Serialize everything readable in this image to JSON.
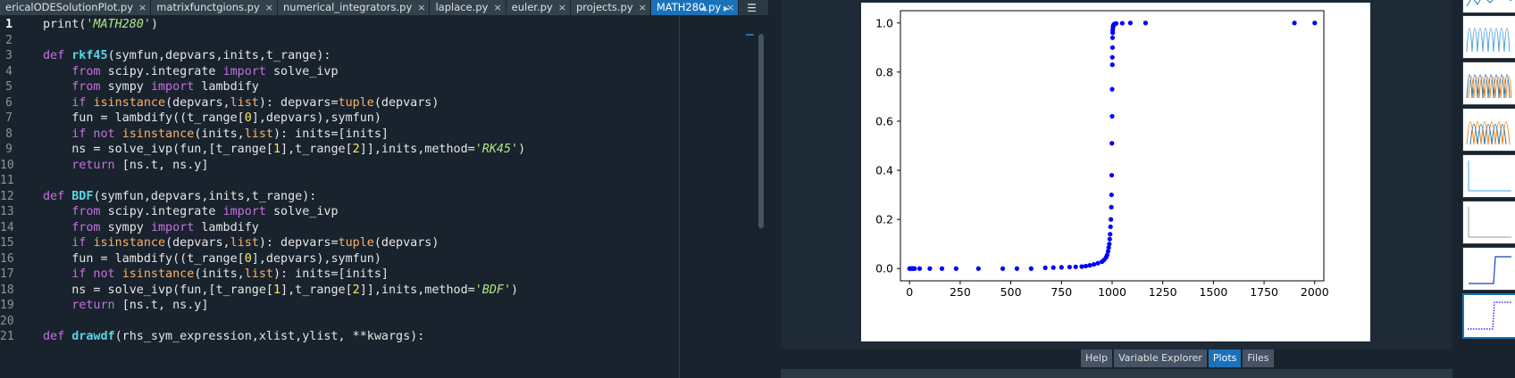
{
  "tabs": [
    {
      "label": "ericalODESolutionPlot.py",
      "active": false
    },
    {
      "label": "matrixfunctgions.py",
      "active": false
    },
    {
      "label": "numerical_integrators.py",
      "active": false
    },
    {
      "label": "laplace.py",
      "active": false
    },
    {
      "label": "euler.py",
      "active": false
    },
    {
      "label": "projects.py",
      "active": false
    },
    {
      "label": "MATH280.py",
      "active": true
    }
  ],
  "tab_close_glyph": "×",
  "tab_nav": {
    "prev": "◂",
    "next": "▸",
    "menu": "☰"
  },
  "editor": {
    "current_line": 1,
    "line_numbers": [
      "1",
      "2",
      "3",
      "4",
      "5",
      "6",
      "7",
      "8",
      "9",
      "10",
      "11",
      "12",
      "13",
      "14",
      "15",
      "16",
      "17",
      "18",
      "19",
      "20",
      "21"
    ],
    "lines": [
      [
        [
          "print(",
          ""
        ],
        [
          "'MATH280'",
          "st"
        ],
        [
          ")",
          ""
        ]
      ],
      [],
      [
        [
          "def ",
          "kw"
        ],
        [
          "rkf45",
          "fn"
        ],
        [
          "(symfun,depvars,inits,t_range):",
          ""
        ]
      ],
      [
        [
          "    from ",
          "kw"
        ],
        [
          "scipy.integrate ",
          ""
        ],
        [
          "import ",
          "kw"
        ],
        [
          "solve_ivp",
          ""
        ]
      ],
      [
        [
          "    from ",
          "kw"
        ],
        [
          "sympy ",
          ""
        ],
        [
          "import ",
          "kw"
        ],
        [
          "lambdify",
          ""
        ]
      ],
      [
        [
          "    if ",
          "kw"
        ],
        [
          "isinstance",
          "bi"
        ],
        [
          "(depvars,",
          ""
        ],
        [
          "list",
          "bi"
        ],
        [
          "): depvars=",
          ""
        ],
        [
          "tuple",
          "bi"
        ],
        [
          "(depvars)",
          ""
        ]
      ],
      [
        [
          "    fun = lambdify((t_range[",
          ""
        ],
        [
          "0",
          "nu"
        ],
        [
          "],depvars),symfun)",
          ""
        ]
      ],
      [
        [
          "    if not ",
          "kw"
        ],
        [
          "isinstance",
          "bi"
        ],
        [
          "(inits,",
          ""
        ],
        [
          "list",
          "bi"
        ],
        [
          "): inits=[inits]",
          ""
        ]
      ],
      [
        [
          "    ns = solve_ivp(fun,[t_range[",
          ""
        ],
        [
          "1",
          "nu"
        ],
        [
          "],t_range[",
          ""
        ],
        [
          "2",
          "nu"
        ],
        [
          "]],inits,method=",
          ""
        ],
        [
          "'RK45'",
          "st"
        ],
        [
          ")",
          ""
        ]
      ],
      [
        [
          "    return ",
          "kw"
        ],
        [
          "[ns.t, ns.y]",
          ""
        ]
      ],
      [],
      [
        [
          "def ",
          "kw"
        ],
        [
          "BDF",
          "fn"
        ],
        [
          "(symfun,depvars,inits,t_range):",
          ""
        ]
      ],
      [
        [
          "    from ",
          "kw"
        ],
        [
          "scipy.integrate ",
          ""
        ],
        [
          "import ",
          "kw"
        ],
        [
          "solve_ivp",
          ""
        ]
      ],
      [
        [
          "    from ",
          "kw"
        ],
        [
          "sympy ",
          ""
        ],
        [
          "import ",
          "kw"
        ],
        [
          "lambdify",
          ""
        ]
      ],
      [
        [
          "    if ",
          "kw"
        ],
        [
          "isinstance",
          "bi"
        ],
        [
          "(depvars,",
          ""
        ],
        [
          "list",
          "bi"
        ],
        [
          "): depvars=",
          ""
        ],
        [
          "tuple",
          "bi"
        ],
        [
          "(depvars)",
          ""
        ]
      ],
      [
        [
          "    fun = lambdify((t_range[",
          ""
        ],
        [
          "0",
          "nu"
        ],
        [
          "],depvars),symfun)",
          ""
        ]
      ],
      [
        [
          "    if not ",
          "kw"
        ],
        [
          "isinstance",
          "bi"
        ],
        [
          "(inits,",
          ""
        ],
        [
          "list",
          "bi"
        ],
        [
          "): inits=[inits]",
          ""
        ]
      ],
      [
        [
          "    ns = solve_ivp(fun,[t_range[",
          ""
        ],
        [
          "1",
          "nu"
        ],
        [
          "],t_range[",
          ""
        ],
        [
          "2",
          "nu"
        ],
        [
          "]],inits,method=",
          ""
        ],
        [
          "'BDF'",
          "st"
        ],
        [
          ")",
          ""
        ]
      ],
      [
        [
          "    return ",
          "kw"
        ],
        [
          "[ns.t, ns.y]",
          ""
        ]
      ],
      [],
      [
        [
          "def ",
          "kw"
        ],
        [
          "drawdf",
          "fn"
        ],
        [
          "(rhs_sym_expression,xlist,ylist, **kwargs):",
          ""
        ]
      ]
    ]
  },
  "pane_tabs": [
    {
      "label": "Help",
      "active": false
    },
    {
      "label": "Variable Explorer",
      "active": false
    },
    {
      "label": "Plots",
      "active": true
    },
    {
      "label": "Files",
      "active": false
    }
  ],
  "colors": {
    "point": "#0000ff",
    "accent": "#1a72bb"
  },
  "chart_data": {
    "type": "scatter",
    "title": "",
    "xlabel": "",
    "ylabel": "",
    "xlim": [
      -45,
      2045
    ],
    "ylim": [
      -0.05,
      1.05
    ],
    "xticks": [
      "0",
      "250",
      "500",
      "750",
      "1000",
      "1250",
      "1500",
      "1750",
      "2000"
    ],
    "xtick_values": [
      0,
      250,
      500,
      750,
      1000,
      1250,
      1500,
      1750,
      2000
    ],
    "yticks": [
      "0.0",
      "0.2",
      "0.4",
      "0.6",
      "0.8",
      "1.0"
    ],
    "ytick_values": [
      0,
      0.2,
      0.4,
      0.6,
      0.8,
      1.0
    ],
    "grid": false,
    "series": [
      {
        "x": [
          0,
          5,
          10,
          15,
          20,
          25,
          50,
          100,
          160,
          230,
          340,
          460,
          530,
          600,
          670,
          710,
          750,
          790,
          820,
          850,
          870,
          890,
          910,
          930,
          950,
          960,
          970,
          975,
          980,
          983,
          986,
          988,
          990,
          992,
          994,
          996,
          997,
          998,
          999,
          1000,
          1000,
          1001,
          1001,
          1002,
          1002,
          1003,
          1003,
          1004,
          1005,
          1006,
          1008,
          1010,
          1015,
          1020,
          1050,
          1090,
          1165,
          1900,
          2000
        ],
        "y": [
          0,
          0,
          0,
          0,
          0,
          0,
          0,
          0,
          0,
          0,
          0,
          0,
          0,
          0,
          0.003,
          0.004,
          0.005,
          0.006,
          0.007,
          0.008,
          0.01,
          0.013,
          0.017,
          0.022,
          0.028,
          0.035,
          0.045,
          0.055,
          0.07,
          0.085,
          0.1,
          0.12,
          0.14,
          0.17,
          0.2,
          0.25,
          0.3,
          0.38,
          0.51,
          0.62,
          0.73,
          0.83,
          0.86,
          0.9,
          0.94,
          0.96,
          0.97,
          0.98,
          0.985,
          0.99,
          0.993,
          0.995,
          0.997,
          0.998,
          0.999,
          1,
          1,
          1,
          1
        ]
      }
    ]
  }
}
